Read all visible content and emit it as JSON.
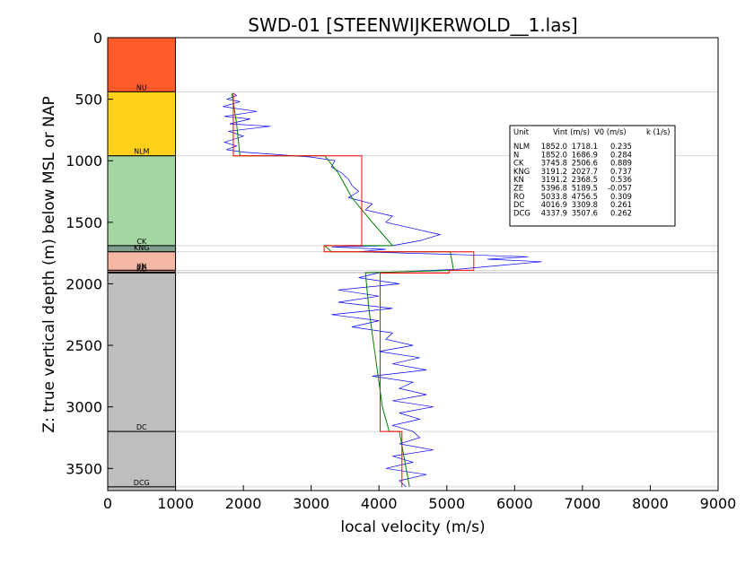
{
  "chart_data": {
    "type": "line",
    "title": "SWD-01 [STEENWIJKERWOLD__1.las]",
    "xlabel": "local velocity (m/s)",
    "ylabel": "Z: true vertical depth (m) below MSL or NAP",
    "xlim": [
      0,
      9000
    ],
    "ylim": [
      3680,
      0
    ],
    "y_inverted": true,
    "x_ticks": [
      "0",
      "1000",
      "2000",
      "3000",
      "4000",
      "5000",
      "6000",
      "7000",
      "8000",
      "9000"
    ],
    "y_ticks": [
      "0",
      "500",
      "1000",
      "1500",
      "2000",
      "2500",
      "3000",
      "3500"
    ],
    "grid": "horizontal lines at unit boundaries",
    "legend_placement": "upper-right",
    "units": [
      {
        "name": "",
        "top": 0,
        "base": 440,
        "color": "#ff5a2a"
      },
      {
        "name": "NU",
        "top": 440,
        "base": 960,
        "color": "#ffd11a"
      },
      {
        "name": "NLM",
        "top": 960,
        "base": 1690,
        "color": "#a3d6a2"
      },
      {
        "name": "CK",
        "top": 1690,
        "base": 1740,
        "color": "#7f9e8c"
      },
      {
        "name": "KNG",
        "top": 1740,
        "base": 1890,
        "color": "#f5b8a4"
      },
      {
        "name": "KN",
        "top": 1890,
        "base": 1905,
        "color": "#f29a86"
      },
      {
        "name": "ZE",
        "top": 1905,
        "base": 1912,
        "color": "#c9c9c9"
      },
      {
        "name": "RO",
        "top": 1912,
        "base": 3200,
        "color": "#bebebe"
      },
      {
        "name": "DC",
        "top": 3200,
        "base": 3650,
        "color": "#bebebe"
      },
      {
        "name": "DCG",
        "top": 3650,
        "base": 3680,
        "color": "#bebebe"
      }
    ],
    "legend": {
      "header": [
        "Unit",
        "Vint (m/s)",
        "V0 (m/s)",
        "k (1/s)"
      ],
      "rows": [
        [
          "NLM",
          "1852.0",
          "1718.1",
          "0.235"
        ],
        [
          "N",
          "1852.0",
          "1686.9",
          "0.284"
        ],
        [
          "CK",
          "3745.8",
          "2506.6",
          "0.889"
        ],
        [
          "KNG",
          "3191.2",
          "2027.7",
          "0.737"
        ],
        [
          "KN",
          "3191.2",
          "2368.5",
          "0.536"
        ],
        [
          "ZE",
          "5396.8",
          "5189.5",
          "-0.057"
        ],
        [
          "RO",
          "5033.8",
          "4756.5",
          "0.309"
        ],
        [
          "DC",
          "4016.9",
          "3309.8",
          "0.261"
        ],
        [
          "DCG",
          "4337.9",
          "3507.6",
          "0.262"
        ]
      ]
    },
    "series": [
      {
        "color": "#0000ff",
        "points": [
          [
            1850,
            450
          ],
          [
            1900,
            470
          ],
          [
            1760,
            500
          ],
          [
            1950,
            520
          ],
          [
            1700,
            560
          ],
          [
            2200,
            600
          ],
          [
            1720,
            640
          ],
          [
            2100,
            660
          ],
          [
            1800,
            700
          ],
          [
            2400,
            720
          ],
          [
            1780,
            760
          ],
          [
            2000,
            800
          ],
          [
            1720,
            850
          ],
          [
            1900,
            880
          ],
          [
            1750,
            910
          ],
          [
            2000,
            930
          ],
          [
            2500,
            950
          ],
          [
            3000,
            970
          ],
          [
            3350,
            1000
          ],
          [
            3300,
            1050
          ],
          [
            3450,
            1100
          ],
          [
            3550,
            1150
          ],
          [
            3600,
            1200
          ],
          [
            3700,
            1250
          ],
          [
            3550,
            1300
          ],
          [
            3900,
            1350
          ],
          [
            3800,
            1400
          ],
          [
            4200,
            1450
          ],
          [
            4100,
            1500
          ],
          [
            4500,
            1550
          ],
          [
            4900,
            1600
          ],
          [
            4600,
            1650
          ],
          [
            4200,
            1690
          ],
          [
            3300,
            1700
          ],
          [
            4100,
            1720
          ],
          [
            3700,
            1740
          ],
          [
            5000,
            1760
          ],
          [
            6200,
            1780
          ],
          [
            5600,
            1800
          ],
          [
            6400,
            1820
          ],
          [
            5800,
            1850
          ],
          [
            5200,
            1880
          ],
          [
            4000,
            1910
          ],
          [
            3700,
            1950
          ],
          [
            4300,
            2000
          ],
          [
            3400,
            2050
          ],
          [
            4000,
            2100
          ],
          [
            3400,
            2150
          ],
          [
            4200,
            2200
          ],
          [
            3300,
            2250
          ],
          [
            4000,
            2300
          ],
          [
            3600,
            2350
          ],
          [
            4200,
            2400
          ],
          [
            4100,
            2450
          ],
          [
            4500,
            2500
          ],
          [
            4000,
            2550
          ],
          [
            4600,
            2600
          ],
          [
            4200,
            2650
          ],
          [
            4700,
            2700
          ],
          [
            3900,
            2750
          ],
          [
            4500,
            2800
          ],
          [
            4300,
            2850
          ],
          [
            4700,
            2900
          ],
          [
            4200,
            2950
          ],
          [
            4800,
            3000
          ],
          [
            4300,
            3050
          ],
          [
            4600,
            3100
          ],
          [
            4200,
            3150
          ],
          [
            4500,
            3200
          ],
          [
            4600,
            3250
          ],
          [
            4300,
            3300
          ],
          [
            4800,
            3350
          ],
          [
            4200,
            3400
          ],
          [
            4500,
            3450
          ],
          [
            4100,
            3500
          ],
          [
            4700,
            3550
          ],
          [
            4300,
            3600
          ],
          [
            4400,
            3650
          ]
        ]
      },
      {
        "color": "#008000",
        "points": [
          [
            1830,
            450
          ],
          [
            1900,
            700
          ],
          [
            1950,
            960
          ],
          [
            3200,
            960
          ],
          [
            3400,
            1100
          ],
          [
            3600,
            1300
          ],
          [
            3900,
            1500
          ],
          [
            4200,
            1690
          ],
          [
            3200,
            1690
          ],
          [
            3300,
            1740
          ],
          [
            5050,
            1740
          ],
          [
            5100,
            1890
          ],
          [
            3800,
            1910
          ],
          [
            3850,
            2200
          ],
          [
            3950,
            2600
          ],
          [
            4050,
            3000
          ],
          [
            4150,
            3200
          ],
          [
            4300,
            3200
          ],
          [
            4450,
            3650
          ]
        ]
      },
      {
        "color": "#ff0000",
        "points": [
          [
            1852,
            450
          ],
          [
            1852,
            960
          ],
          [
            3745.8,
            960
          ],
          [
            3745.8,
            1690
          ],
          [
            3191.2,
            1690
          ],
          [
            3191.2,
            1740
          ],
          [
            5396.8,
            1740
          ],
          [
            5396.8,
            1890
          ],
          [
            5033.8,
            1890
          ],
          [
            5033.8,
            1912
          ],
          [
            4016.9,
            1912
          ],
          [
            4016.9,
            3200
          ],
          [
            4337.9,
            3200
          ],
          [
            4337.9,
            3650
          ]
        ]
      }
    ]
  }
}
